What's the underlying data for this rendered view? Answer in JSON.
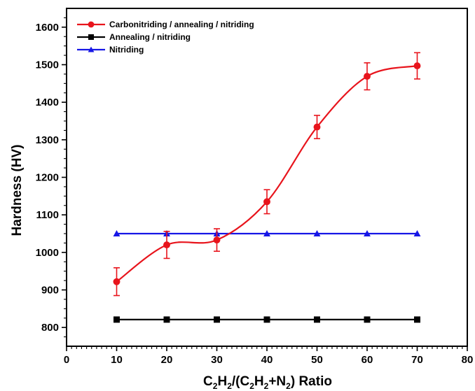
{
  "chart_data": {
    "type": "line",
    "xlabel_parts": {
      "c1": "C",
      "s1": "2",
      "h1": "H",
      "s2": "2",
      "mid": "/(C",
      "s3": "2",
      "h2": "H",
      "s4": "2",
      "plusn": "+N",
      "s5": "2",
      "end": ") Ratio"
    },
    "ylabel": "Hardness (HV)",
    "xlim": [
      0,
      80
    ],
    "ylim": [
      750,
      1650
    ],
    "xticks": [
      0,
      10,
      20,
      30,
      40,
      50,
      60,
      70,
      80
    ],
    "yticks": [
      800,
      900,
      1000,
      1100,
      1200,
      1300,
      1400,
      1500,
      1600
    ],
    "x": [
      10,
      20,
      30,
      40,
      50,
      60,
      70
    ],
    "legend_position": "top-left",
    "grid": false,
    "series": [
      {
        "name": "Carbonitriding / annealing / nitriding",
        "color": "#e8141c",
        "marker": "circle",
        "smooth": true,
        "values": [
          922,
          1020,
          1033,
          1135,
          1334,
          1469,
          1497
        ],
        "errors": [
          37,
          36,
          30,
          32,
          31,
          36,
          35
        ]
      },
      {
        "name": "Annealing / nitriding",
        "color": "#000000",
        "marker": "square",
        "smooth": false,
        "values": [
          821,
          821,
          821,
          821,
          821,
          821,
          821
        ]
      },
      {
        "name": "Nitriding",
        "color": "#1616e6",
        "marker": "triangle",
        "smooth": false,
        "values": [
          1050,
          1050,
          1050,
          1050,
          1050,
          1050,
          1050
        ]
      }
    ]
  }
}
